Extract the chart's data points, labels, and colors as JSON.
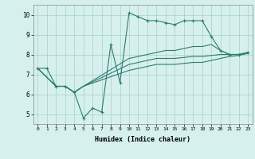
{
  "xlabel": "Humidex (Indice chaleur)",
  "background_color": "#d6f0ee",
  "line_color": "#2e7d6e",
  "xlim": [
    -0.5,
    23.5
  ],
  "ylim": [
    4.5,
    10.5
  ],
  "xticks": [
    0,
    1,
    2,
    3,
    4,
    5,
    6,
    7,
    8,
    9,
    10,
    11,
    12,
    13,
    14,
    15,
    16,
    17,
    18,
    19,
    20,
    21,
    22,
    23
  ],
  "yticks": [
    5,
    6,
    7,
    8,
    9,
    10
  ],
  "series": [
    {
      "x": [
        0,
        1,
        2,
        3,
        4,
        5,
        6,
        7,
        8,
        9,
        10,
        11,
        12,
        13,
        14,
        15,
        16,
        17,
        18,
        19,
        20,
        21,
        22,
        23
      ],
      "y": [
        7.3,
        7.3,
        6.4,
        6.4,
        6.1,
        4.8,
        5.3,
        5.1,
        8.5,
        6.6,
        10.1,
        9.9,
        9.7,
        9.7,
        9.6,
        9.5,
        9.7,
        9.7,
        9.7,
        8.9,
        8.2,
        8.0,
        8.0,
        8.1
      ],
      "has_markers": true
    },
    {
      "x": [
        0,
        2,
        3,
        4,
        5,
        10,
        11,
        12,
        13,
        14,
        15,
        16,
        17,
        18,
        19,
        20,
        21,
        22,
        23
      ],
      "y": [
        7.3,
        6.4,
        6.4,
        6.1,
        6.4,
        7.8,
        7.9,
        8.0,
        8.1,
        8.2,
        8.2,
        8.3,
        8.4,
        8.4,
        8.5,
        8.2,
        8.0,
        8.0,
        8.1
      ],
      "has_markers": false
    },
    {
      "x": [
        0,
        2,
        3,
        4,
        5,
        10,
        11,
        12,
        13,
        14,
        15,
        16,
        17,
        18,
        19,
        20,
        21,
        22,
        23
      ],
      "y": [
        7.3,
        6.4,
        6.4,
        6.1,
        6.4,
        7.5,
        7.6,
        7.7,
        7.8,
        7.8,
        7.8,
        7.85,
        7.9,
        7.9,
        7.95,
        8.0,
        8.0,
        8.0,
        8.1
      ],
      "has_markers": false
    },
    {
      "x": [
        0,
        2,
        3,
        4,
        5,
        10,
        11,
        12,
        13,
        14,
        15,
        16,
        17,
        18,
        19,
        20,
        21,
        22,
        23
      ],
      "y": [
        7.3,
        6.4,
        6.4,
        6.1,
        6.4,
        7.2,
        7.3,
        7.4,
        7.5,
        7.5,
        7.5,
        7.55,
        7.6,
        7.6,
        7.7,
        7.8,
        7.9,
        7.95,
        8.05
      ],
      "has_markers": false
    }
  ]
}
